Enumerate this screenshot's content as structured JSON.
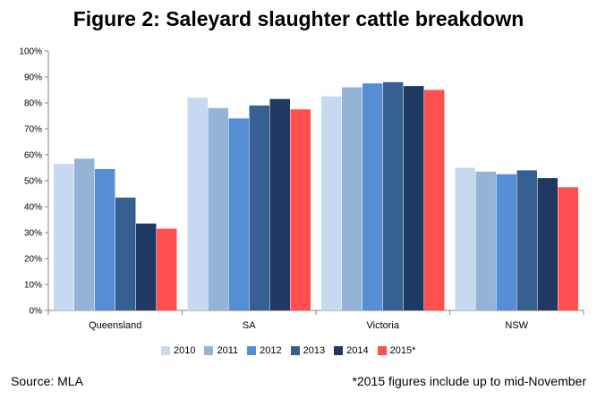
{
  "title": "Figure 2: Saleyard slaughter cattle breakdown",
  "source": "Source: MLA",
  "footnote": "*2015 figures include up to mid-November",
  "chart_data": {
    "type": "bar",
    "categories": [
      "Queensland",
      "SA",
      "Victoria",
      "NSW"
    ],
    "series": [
      {
        "name": "2010",
        "color": "#c6d9f1",
        "values": [
          56.5,
          82,
          82.5,
          55
        ]
      },
      {
        "name": "2011",
        "color": "#95b3d7",
        "values": [
          58.5,
          78,
          86,
          53.5
        ]
      },
      {
        "name": "2012",
        "color": "#558ed5",
        "values": [
          54.5,
          74,
          87.5,
          52.5
        ]
      },
      {
        "name": "2013",
        "color": "#376092",
        "values": [
          43.5,
          79,
          88,
          54
        ]
      },
      {
        "name": "2014",
        "color": "#1f3864",
        "values": [
          33.5,
          81.5,
          86.5,
          51
        ]
      },
      {
        "name": "2015*",
        "color": "#ff4f4f",
        "values": [
          31.5,
          77.5,
          85,
          47.5
        ]
      }
    ],
    "yticks": [
      "0%",
      "10%",
      "20%",
      "30%",
      "40%",
      "50%",
      "60%",
      "70%",
      "80%",
      "90%",
      "100%"
    ],
    "ylim": [
      0,
      100
    ],
    "xlabel": "",
    "ylabel": "",
    "legend_position": "bottom",
    "grid": false
  }
}
